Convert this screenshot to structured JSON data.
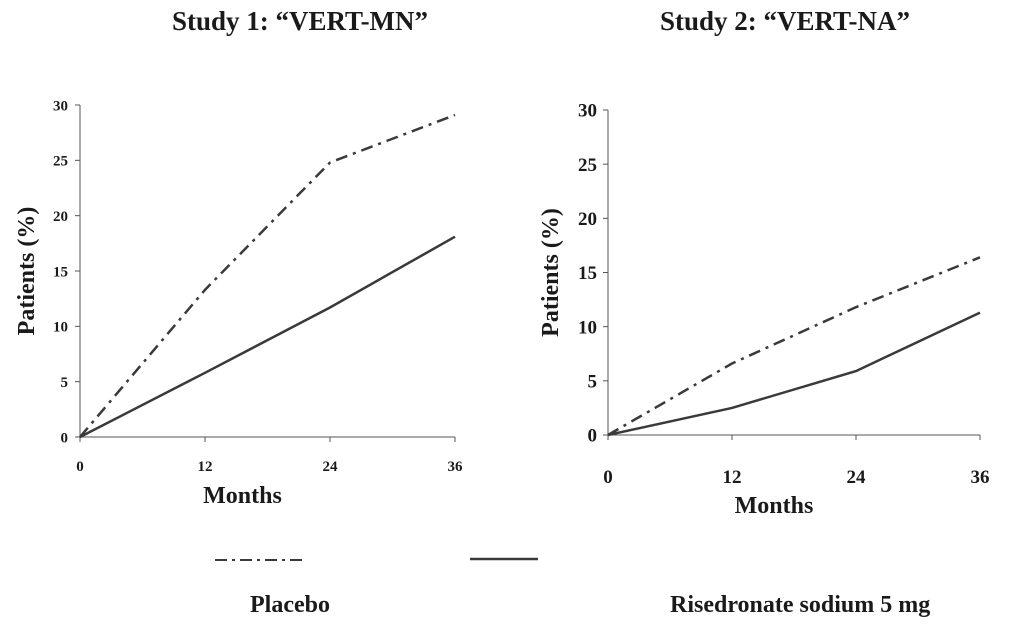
{
  "chart_data": [
    {
      "type": "line",
      "title": "Study 1: “VERT-MN”",
      "xlabel": "Months",
      "ylabel": "Patients (%)",
      "x": [
        0,
        12,
        24,
        36
      ],
      "xlim": [
        0,
        36
      ],
      "ylim": [
        0,
        30
      ],
      "xticks": [
        "0",
        "12",
        "24",
        "36"
      ],
      "yticks": [
        "0",
        "5",
        "10",
        "15",
        "20",
        "25",
        "30"
      ],
      "grid": false,
      "series": [
        {
          "name": "Placebo",
          "style": "dash-dot",
          "values": [
            0,
            13.3,
            24.8,
            29.1
          ]
        },
        {
          "name": "Risedronate sodium 5 mg",
          "style": "solid",
          "values": [
            0,
            5.8,
            11.7,
            18.1
          ]
        }
      ]
    },
    {
      "type": "line",
      "title": "Study 2: “VERT-NA”",
      "xlabel": "Months",
      "ylabel": "Patients (%)",
      "x": [
        0,
        12,
        24,
        36
      ],
      "xlim": [
        0,
        36
      ],
      "ylim": [
        0,
        30
      ],
      "xticks": [
        "0",
        "12",
        "24",
        "36"
      ],
      "yticks": [
        "0",
        "5",
        "10",
        "15",
        "20",
        "25",
        "30"
      ],
      "grid": false,
      "series": [
        {
          "name": "Placebo",
          "style": "dash-dot",
          "values": [
            0,
            6.6,
            11.8,
            16.4
          ]
        },
        {
          "name": "Risedronate sodium 5 mg",
          "style": "solid",
          "values": [
            0,
            2.5,
            5.9,
            11.3
          ]
        }
      ]
    }
  ],
  "legend": {
    "placebo_label": "Placebo",
    "risedronate_label": "Risedronate sodium 5 mg"
  },
  "colors": {
    "line": "#3a3a3a",
    "text": "#1a1a1a"
  }
}
